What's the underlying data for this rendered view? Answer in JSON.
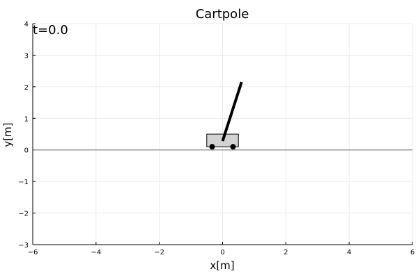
{
  "chart_data": {
    "type": "line",
    "title": "Cartpole",
    "xlabel": "x[m]",
    "ylabel": "y[m]",
    "xlim": [
      -6,
      6
    ],
    "ylim": [
      -3,
      4
    ],
    "xticks": [
      -6,
      -4,
      -2,
      0,
      2,
      4,
      6
    ],
    "yticks": [
      -3,
      -2,
      -1,
      0,
      1,
      2,
      3,
      4
    ],
    "grid": true,
    "annotation": "t=0.0",
    "ground_line": {
      "y": 0,
      "x": [
        -6,
        6
      ],
      "color": "#808080"
    },
    "cart": {
      "x": [
        -0.5,
        0.5
      ],
      "y": [
        0.1,
        0.5
      ],
      "fill": "#d3d3d3"
    },
    "wheels": [
      {
        "x": -0.33,
        "y": 0.1
      },
      {
        "x": 0.33,
        "y": 0.1
      }
    ],
    "pole": {
      "x": [
        0,
        0.6
      ],
      "y": [
        0.28,
        2.15
      ],
      "color": "#000000"
    }
  }
}
